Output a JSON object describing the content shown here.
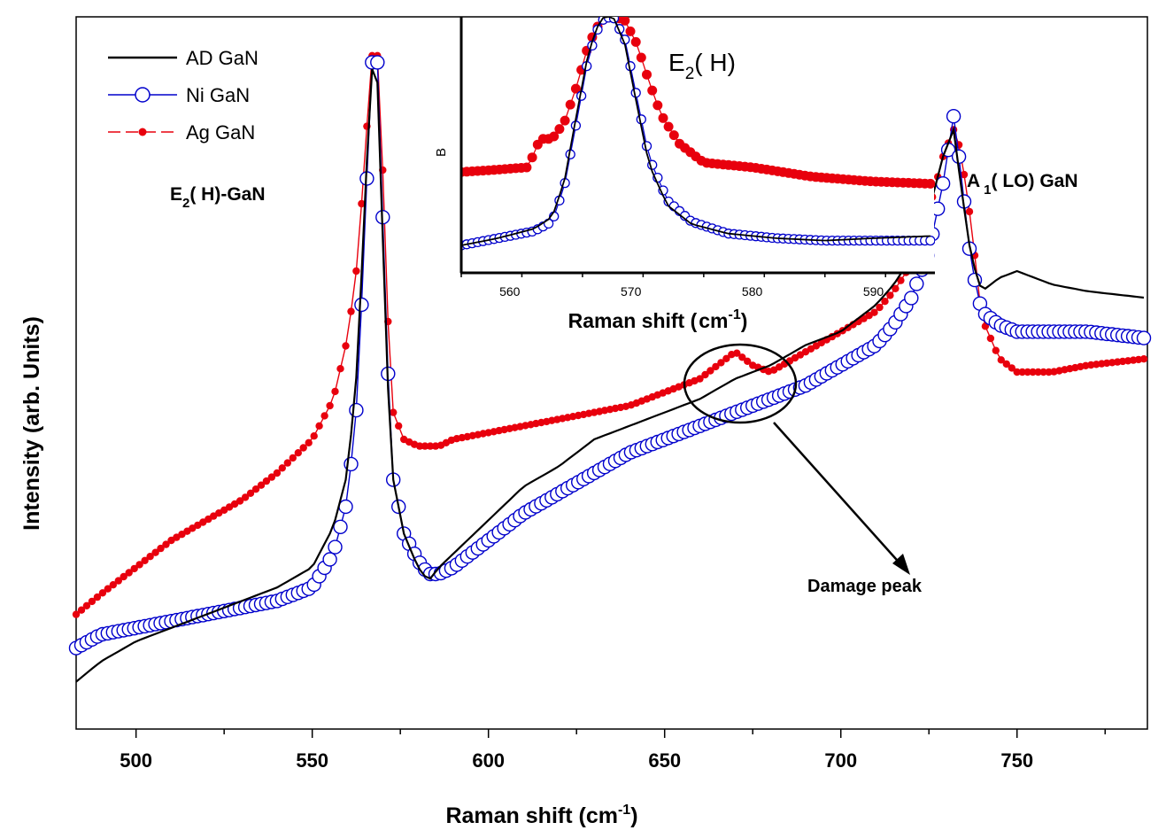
{
  "colors": {
    "ad": "#000000",
    "ni": "#0000cc",
    "ag": "#e8000d"
  },
  "chart_data": [
    {
      "type": "line",
      "title": "",
      "xlabel": "Raman shift (cm-1)",
      "xlabel_main": "Raman shift (cm",
      "xlabel_sup": "-1",
      "xlabel_close": ")",
      "ylabel": "Intensity (arb. Units)",
      "xlim": [
        483,
        787
      ],
      "ylim": [
        0,
        1
      ],
      "y_ticks_shown": false,
      "x_ticks": [
        "500",
        "550",
        "600",
        "650",
        "700",
        "750"
      ],
      "legend_position": "top-left",
      "series": [
        {
          "name": "AD GaN",
          "color_key": "ad",
          "marker": "none",
          "x": [
            483,
            490,
            500,
            510,
            520,
            530,
            540,
            550,
            556,
            560,
            563,
            565,
            567,
            568,
            569,
            570,
            571,
            573,
            576,
            580,
            583,
            586,
            590,
            600,
            610,
            620,
            630,
            640,
            650,
            660,
            670,
            680,
            690,
            700,
            710,
            715,
            720,
            725,
            729,
            732,
            734,
            737,
            740,
            745,
            750,
            760,
            770,
            787
          ],
          "y": [
            0.04,
            0.07,
            0.1,
            0.12,
            0.14,
            0.16,
            0.18,
            0.21,
            0.27,
            0.35,
            0.52,
            0.77,
            0.95,
            0.98,
            0.88,
            0.7,
            0.52,
            0.34,
            0.26,
            0.21,
            0.19,
            0.21,
            0.23,
            0.28,
            0.33,
            0.36,
            0.4,
            0.42,
            0.44,
            0.46,
            0.49,
            0.51,
            0.54,
            0.56,
            0.6,
            0.63,
            0.67,
            0.74,
            0.82,
            0.86,
            0.78,
            0.67,
            0.62,
            0.64,
            0.65,
            0.63,
            0.62,
            0.61
          ]
        },
        {
          "name": "Ni GaN",
          "color_key": "ni",
          "marker": "open-circle",
          "x": [
            483,
            490,
            500,
            510,
            520,
            530,
            540,
            550,
            556,
            560,
            563,
            565,
            567,
            568,
            569,
            570,
            571,
            573,
            576,
            580,
            583,
            586,
            590,
            600,
            610,
            620,
            630,
            640,
            650,
            660,
            670,
            680,
            690,
            700,
            710,
            715,
            720,
            725,
            729,
            732,
            734,
            737,
            740,
            745,
            750,
            760,
            770,
            787
          ],
          "y": [
            0.09,
            0.11,
            0.12,
            0.13,
            0.14,
            0.15,
            0.16,
            0.18,
            0.23,
            0.31,
            0.47,
            0.73,
            0.96,
            1.0,
            0.92,
            0.73,
            0.55,
            0.34,
            0.26,
            0.22,
            0.2,
            0.2,
            0.21,
            0.25,
            0.29,
            0.32,
            0.35,
            0.38,
            0.4,
            0.42,
            0.44,
            0.46,
            0.48,
            0.51,
            0.54,
            0.57,
            0.61,
            0.68,
            0.78,
            0.88,
            0.8,
            0.66,
            0.59,
            0.57,
            0.56,
            0.56,
            0.56,
            0.55
          ]
        },
        {
          "name": "Ag GaN",
          "color_key": "ag",
          "marker": "filled-dot",
          "x": [
            483,
            490,
            500,
            510,
            520,
            530,
            540,
            550,
            556,
            560,
            563,
            565,
            567,
            568,
            569,
            570,
            571,
            573,
            576,
            580,
            583,
            586,
            590,
            600,
            610,
            620,
            630,
            640,
            650,
            660,
            665,
            670,
            675,
            680,
            690,
            700,
            710,
            715,
            720,
            725,
            729,
            732,
            734,
            737,
            740,
            745,
            750,
            760,
            770,
            787
          ],
          "y": [
            0.14,
            0.17,
            0.21,
            0.25,
            0.28,
            0.31,
            0.35,
            0.4,
            0.46,
            0.55,
            0.67,
            0.83,
            0.97,
            0.99,
            0.95,
            0.8,
            0.62,
            0.44,
            0.4,
            0.39,
            0.39,
            0.39,
            0.4,
            0.41,
            0.42,
            0.43,
            0.44,
            0.45,
            0.47,
            0.49,
            0.51,
            0.53,
            0.51,
            0.5,
            0.53,
            0.56,
            0.59,
            0.62,
            0.66,
            0.74,
            0.82,
            0.86,
            0.83,
            0.72,
            0.58,
            0.52,
            0.5,
            0.5,
            0.51,
            0.52
          ]
        }
      ],
      "annotations": {
        "e2h_main": "E",
        "e2h_sub": "2",
        "e2h_rest": "( H)-GaN",
        "a1_main": "A",
        "a1_sub": "1",
        "a1_rest": "( LO) GaN",
        "damage": "Damage peak"
      }
    },
    {
      "type": "line",
      "title": "E2( H)",
      "title_main": "E",
      "title_sub": "2",
      "title_rest": "( H)",
      "xlabel": "Raman shift (cm-1)",
      "xlabel_main": "Raman shift (",
      "xlabel_unit": "cm",
      "xlabel_sup": "-1",
      "xlabel_close": ")",
      "ylabel": "B",
      "xlim": [
        556,
        595
      ],
      "ylim": [
        0,
        1
      ],
      "x_ticks": [
        "560",
        "570",
        "580",
        "590"
      ],
      "series": [
        {
          "name": "AD GaN",
          "color_key": "ad",
          "x": [
            556,
            559,
            562,
            563.5,
            564.5,
            565.5,
            566.5,
            567.5,
            568.5,
            569.5,
            570.5,
            571.5,
            573,
            575,
            578,
            582,
            586,
            590,
            595
          ],
          "y": [
            0.03,
            0.06,
            0.1,
            0.15,
            0.3,
            0.58,
            0.85,
            0.99,
            1.0,
            0.88,
            0.62,
            0.37,
            0.2,
            0.12,
            0.08,
            0.06,
            0.05,
            0.06,
            0.07
          ]
        },
        {
          "name": "Ni GaN",
          "color_key": "ni",
          "x": [
            556,
            559,
            562,
            563.5,
            564.5,
            565.5,
            566.5,
            567.5,
            568.5,
            569.5,
            570.5,
            571.5,
            573,
            575,
            578,
            582,
            586,
            590,
            595
          ],
          "y": [
            0.03,
            0.06,
            0.09,
            0.13,
            0.28,
            0.55,
            0.83,
            0.98,
            1.0,
            0.9,
            0.65,
            0.4,
            0.22,
            0.13,
            0.08,
            0.06,
            0.05,
            0.05,
            0.05
          ]
        },
        {
          "name": "Ag GaN",
          "color_key": "ag",
          "x": [
            556,
            559,
            561.5,
            562.5,
            563.5,
            564.5,
            565.5,
            566.5,
            567.5,
            568.5,
            569.5,
            570.5,
            571.5,
            572.5,
            574,
            576,
            580,
            585,
            590,
            595
          ],
          "y": [
            0.34,
            0.35,
            0.36,
            0.48,
            0.48,
            0.55,
            0.7,
            0.88,
            0.98,
            1.0,
            0.98,
            0.88,
            0.72,
            0.58,
            0.46,
            0.38,
            0.36,
            0.32,
            0.3,
            0.29
          ]
        }
      ]
    }
  ]
}
